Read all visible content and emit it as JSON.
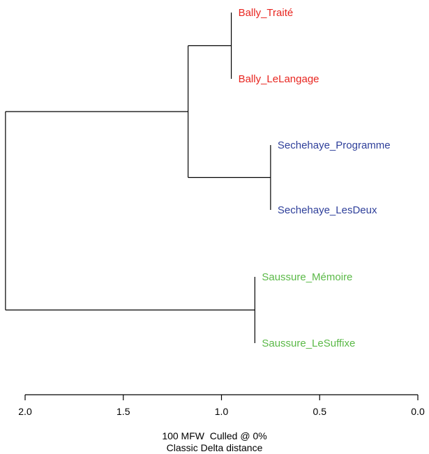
{
  "chart_data": {
    "type": "dendrogram",
    "x_axis": {
      "direction": "reversed",
      "ticks": [
        "2.0",
        "1.5",
        "1.0",
        "0.5",
        "0.0"
      ],
      "range": [
        2.1,
        0.0
      ]
    },
    "leaves": [
      {
        "label": "Bally_Traité",
        "color": "#e8251f",
        "height": 0.95
      },
      {
        "label": "Bally_LeLangage",
        "color": "#e8251f",
        "height": 0.95
      },
      {
        "label": "Sechehaye_Programme",
        "color": "#2e3f9a",
        "height": 0.75
      },
      {
        "label": "Sechehaye_LesDeux",
        "color": "#2e3f9a",
        "height": 0.75
      },
      {
        "label": "Saussure_Mémoire",
        "color": "#5ab947",
        "height": 0.83
      },
      {
        "label": "Saussure_LeSuffixe",
        "color": "#5ab947",
        "height": 0.83
      }
    ],
    "merges": [
      {
        "name": "bally",
        "children": [
          "L0",
          "L1"
        ],
        "height": 0.95
      },
      {
        "name": "sechehaye",
        "children": [
          "L2",
          "L3"
        ],
        "height": 0.75
      },
      {
        "name": "saussure",
        "children": [
          "L4",
          "L5"
        ],
        "height": 0.83
      },
      {
        "name": "bally-sechehaye",
        "children": [
          "bally",
          "sechehaye"
        ],
        "height": 1.17
      },
      {
        "name": "root",
        "children": [
          "bally-sechehaye",
          "saussure"
        ],
        "height": 2.1
      }
    ]
  },
  "caption": {
    "line1": "100 MFW  Culled @ 0%",
    "line2": "Classic Delta distance"
  },
  "colors": {
    "line": "#000000"
  }
}
